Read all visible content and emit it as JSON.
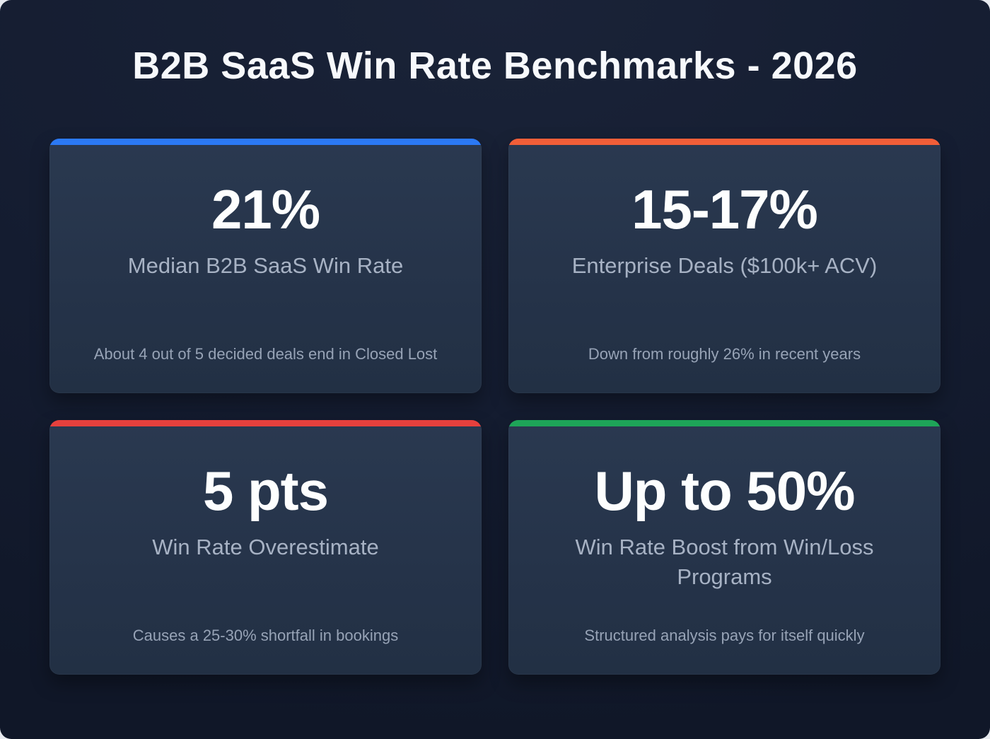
{
  "title": "B2B SaaS Win Rate Benchmarks - 2026",
  "colors": {
    "background": "#141c30",
    "card_background": "#253349",
    "title_text": "#f7f9fc",
    "value_text": "#fdfefe",
    "label_text": "#a7b2c4",
    "note_text": "#97a3b6"
  },
  "cards": [
    {
      "accent": "#2b79f4",
      "value": "21%",
      "label": "Median B2B SaaS Win Rate",
      "note": "About 4 out of 5 decided deals end in Closed Lost"
    },
    {
      "accent": "#f15e38",
      "value": "15-17%",
      "label": "Enterprise Deals ($100k+ ACV)",
      "note": "Down from roughly 26% in recent years"
    },
    {
      "accent": "#e6403d",
      "value": "5 pts",
      "label": "Win Rate Overestimate",
      "note": "Causes a 25-30% shortfall in bookings"
    },
    {
      "accent": "#1ea558",
      "value": "Up to 50%",
      "label": "Win Rate Boost from Win/Loss Programs",
      "note": "Structured analysis pays for itself quickly"
    }
  ],
  "chart_data": {
    "type": "table",
    "title": "B2B SaaS Win Rate Benchmarks - 2026",
    "columns": [
      "Metric",
      "Value",
      "Context"
    ],
    "rows": [
      [
        "Median B2B SaaS Win Rate",
        "21%",
        "About 4 out of 5 decided deals end in Closed Lost"
      ],
      [
        "Enterprise Deals ($100k+ ACV)",
        "15-17%",
        "Down from roughly 26% in recent years"
      ],
      [
        "Win Rate Overestimate",
        "5 pts",
        "Causes a 25-30% shortfall in bookings"
      ],
      [
        "Win Rate Boost from Win/Loss Programs",
        "Up to 50%",
        "Structured analysis pays for itself quickly"
      ]
    ],
    "legend_position": "none",
    "grid": false
  }
}
